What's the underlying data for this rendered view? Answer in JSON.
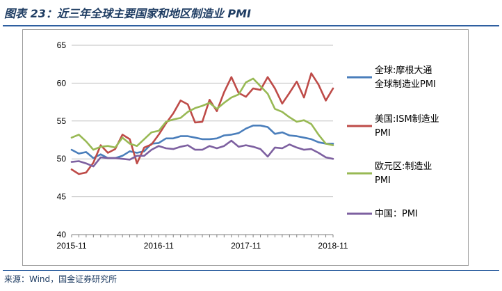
{
  "title": "图表 23：近三年全球主要国家和地区制造业 PMI",
  "source": "来源：Wind，国金证券研究所",
  "chart_data": {
    "type": "line",
    "ylim": [
      40,
      65
    ],
    "y_ticks": [
      40,
      45,
      50,
      55,
      60,
      65
    ],
    "x_ticks": [
      "2015-11",
      "2016-11",
      "2017-11",
      "2018-11"
    ],
    "x": [
      "2015-11",
      "2015-12",
      "2016-01",
      "2016-02",
      "2016-03",
      "2016-04",
      "2016-05",
      "2016-06",
      "2016-07",
      "2016-08",
      "2016-09",
      "2016-10",
      "2016-11",
      "2016-12",
      "2017-01",
      "2017-02",
      "2017-03",
      "2017-04",
      "2017-05",
      "2017-06",
      "2017-07",
      "2017-08",
      "2017-09",
      "2017-10",
      "2017-11",
      "2017-12",
      "2018-01",
      "2018-02",
      "2018-03",
      "2018-04",
      "2018-05",
      "2018-06",
      "2018-07",
      "2018-08",
      "2018-09",
      "2018-10",
      "2018-11"
    ],
    "grid": "horizontal",
    "legend_position": "right",
    "series": [
      {
        "name": "全球:摩根大通全球制造业PMI",
        "legend_lines": [
          "全球:摩根大通",
          "全球制造业PMI"
        ],
        "color": "#4a7ebb",
        "values": [
          51.2,
          50.7,
          50.9,
          50.1,
          50.6,
          50.1,
          50.1,
          50.4,
          51.0,
          50.8,
          51.0,
          52.0,
          52.1,
          52.7,
          52.7,
          53.0,
          53.0,
          52.8,
          52.6,
          52.6,
          52.7,
          53.1,
          53.2,
          53.4,
          54.0,
          54.4,
          54.4,
          54.2,
          53.3,
          53.5,
          53.1,
          53.0,
          52.8,
          52.6,
          52.2,
          52.0,
          52.0
        ]
      },
      {
        "name": "美国:ISM制造业PMI",
        "legend_lines": [
          "美国:ISM制造业",
          "PMI"
        ],
        "color": "#be4b48",
        "values": [
          48.6,
          48.0,
          48.2,
          49.5,
          51.8,
          50.8,
          51.3,
          53.2,
          52.6,
          49.4,
          51.5,
          51.9,
          53.2,
          54.7,
          56.0,
          57.7,
          57.2,
          54.8,
          54.9,
          57.8,
          56.3,
          58.8,
          60.8,
          58.7,
          58.2,
          59.3,
          59.1,
          60.8,
          59.3,
          57.3,
          58.7,
          60.2,
          58.1,
          61.3,
          59.8,
          57.7,
          59.3
        ]
      },
      {
        "name": "欧元区:制造业PMI",
        "legend_lines": [
          "欧元区:制造业",
          "PMI"
        ],
        "color": "#98b954",
        "values": [
          52.8,
          53.2,
          52.3,
          51.2,
          51.6,
          51.7,
          51.5,
          52.8,
          52.0,
          51.7,
          52.6,
          53.5,
          53.7,
          54.9,
          55.2,
          55.4,
          56.2,
          56.7,
          57.0,
          57.4,
          56.6,
          57.4,
          58.1,
          58.5,
          60.1,
          60.6,
          59.6,
          58.6,
          56.6,
          56.2,
          55.5,
          54.9,
          55.1,
          54.6,
          53.2,
          52.0,
          51.8
        ]
      },
      {
        "name": "中国：PMI",
        "legend_lines": [
          "中国：PMI"
        ],
        "color": "#7d60a0",
        "values": [
          49.6,
          49.7,
          49.4,
          49.0,
          50.2,
          50.1,
          50.1,
          50.0,
          49.9,
          50.4,
          50.4,
          51.2,
          51.7,
          51.4,
          51.3,
          51.6,
          51.8,
          51.2,
          51.2,
          51.7,
          51.4,
          51.7,
          52.4,
          51.6,
          51.8,
          51.6,
          51.3,
          50.3,
          51.5,
          51.4,
          51.9,
          51.5,
          51.2,
          51.3,
          50.8,
          50.2,
          50.0
        ]
      }
    ]
  }
}
